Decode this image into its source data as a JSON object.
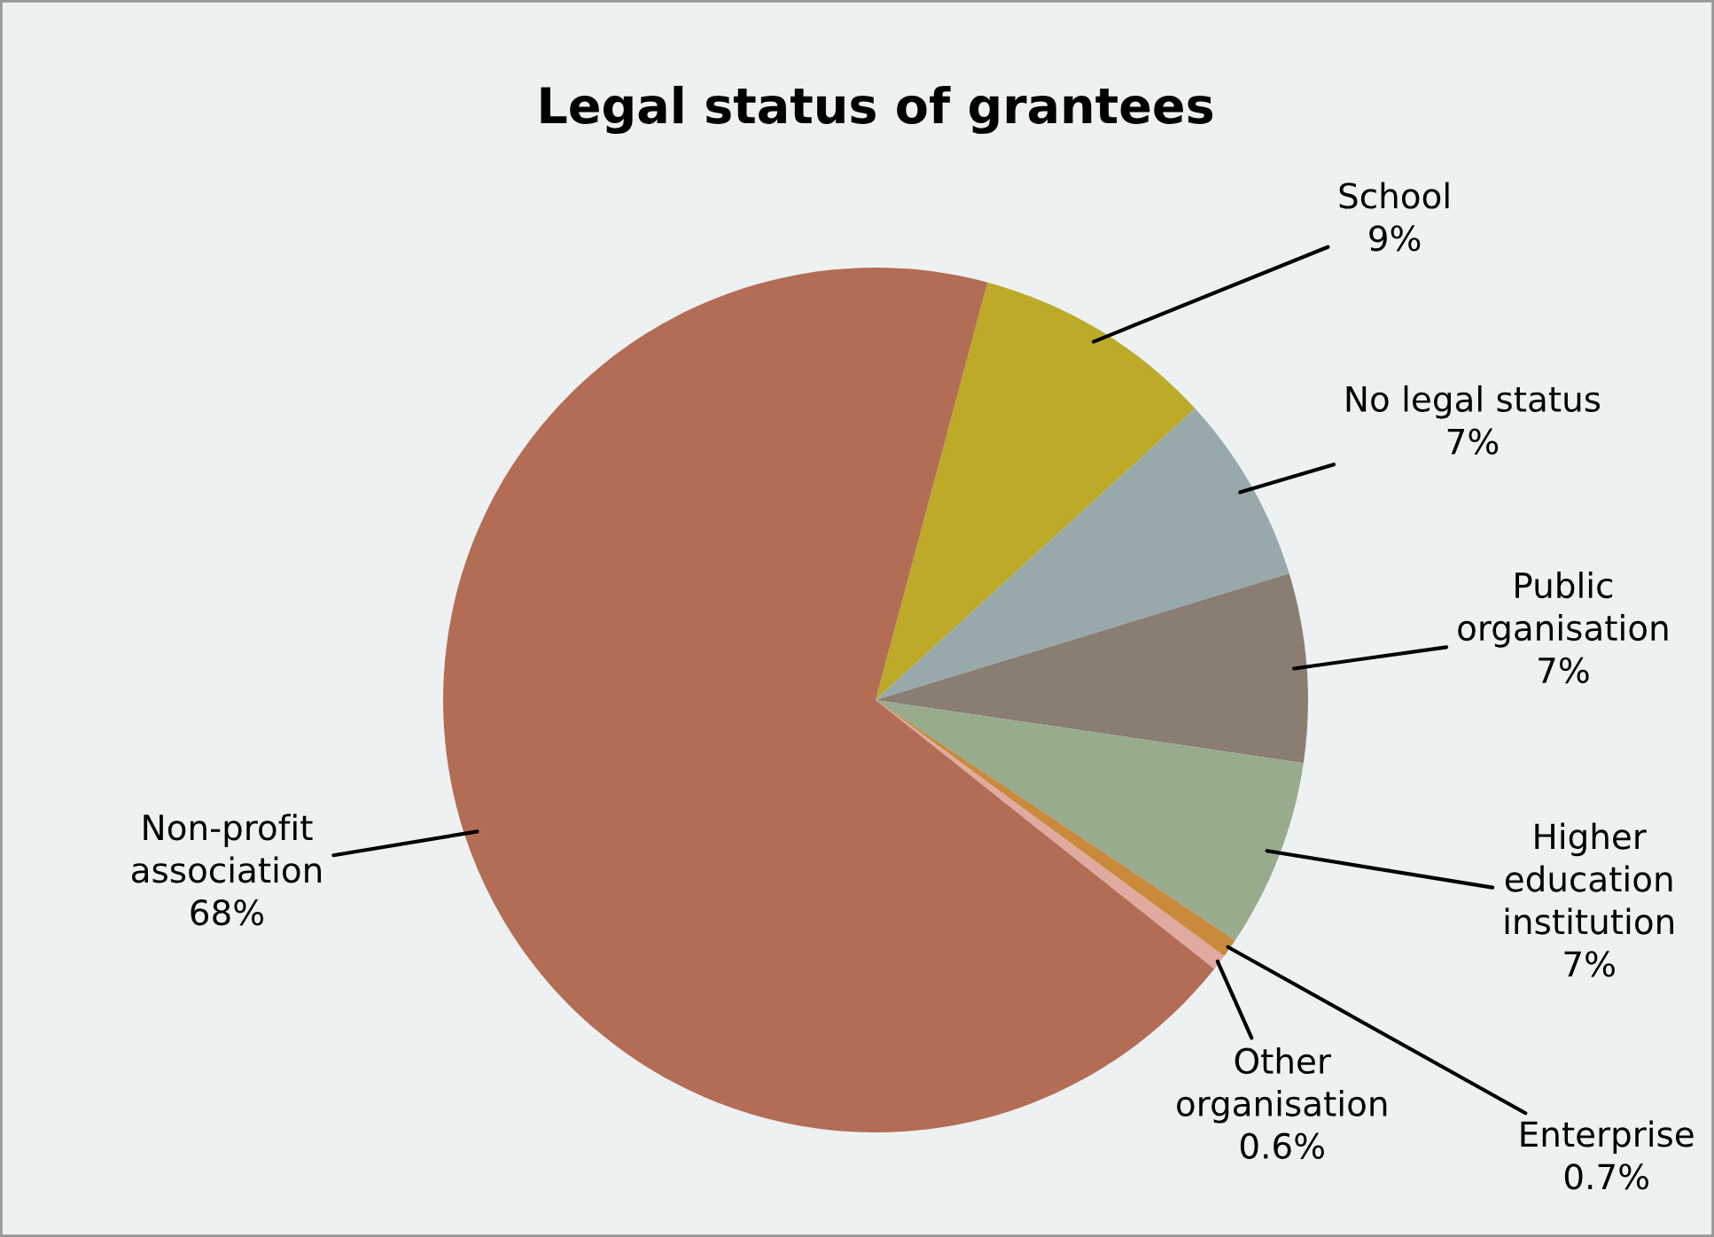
{
  "chart_data": {
    "type": "pie",
    "title": "Legal status of grantees",
    "categories": [
      "School",
      "No legal status",
      "Public organisation",
      "Higher education institution",
      "Enterprise",
      "Other organisation",
      "Non-profit association"
    ],
    "values": [
      9,
      7,
      7,
      7,
      0.7,
      0.6,
      68
    ],
    "value_labels": [
      "9%",
      "7%",
      "7%",
      "7%",
      "0.7%",
      "0.6%",
      "68%"
    ],
    "colors": [
      "#bcaa28",
      "#97a9ab",
      "#8a7d72",
      "#97ab8d",
      "#c98a3c",
      "#e0aaa0",
      "#b36d54"
    ],
    "legend": false
  }
}
